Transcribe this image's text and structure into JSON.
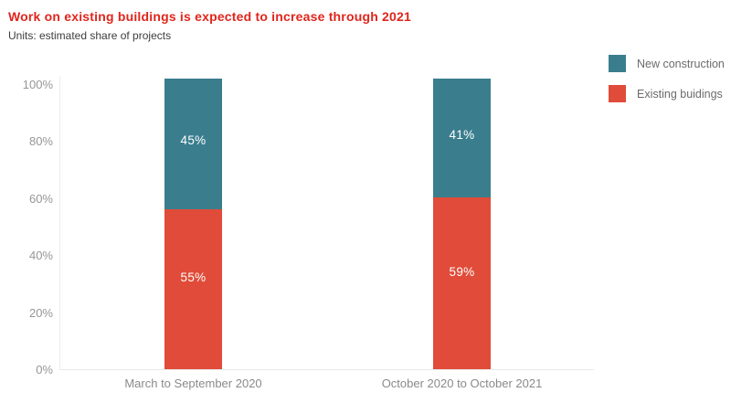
{
  "header": {
    "title": "Work on existing buildings is expected to increase through 2021",
    "subtitle": "Units: estimated share of projects"
  },
  "legend": {
    "items": [
      {
        "label": "New construction",
        "color": "#3A7E8E"
      },
      {
        "label": "Existing buidings",
        "color": "#E04C39"
      }
    ]
  },
  "colors": {
    "title": "#E0251C",
    "new_construction": "#3A7E8E",
    "existing_buildings": "#E04C39",
    "axis_line": "#ededed",
    "tick_text": "#969696"
  },
  "chart_data": {
    "type": "bar",
    "stacked": true,
    "title": "Work on existing buildings is expected to increase through 2021",
    "subtitle": "Units: estimated share of projects",
    "categories": [
      "March to September 2020",
      "October 2020 to October 2021"
    ],
    "series": [
      {
        "name": "Existing buidings",
        "color": "#E04C39",
        "values": [
          55,
          59
        ]
      },
      {
        "name": "New construction",
        "color": "#3A7E8E",
        "values": [
          45,
          41
        ]
      }
    ],
    "value_label_format": "{v}%",
    "xlabel": "",
    "ylabel": "",
    "ylim": [
      0,
      100
    ],
    "yticks": [
      0,
      20,
      40,
      60,
      80,
      100
    ],
    "ytick_format": "{v}%",
    "grid": false,
    "legend_position": "top-right"
  }
}
